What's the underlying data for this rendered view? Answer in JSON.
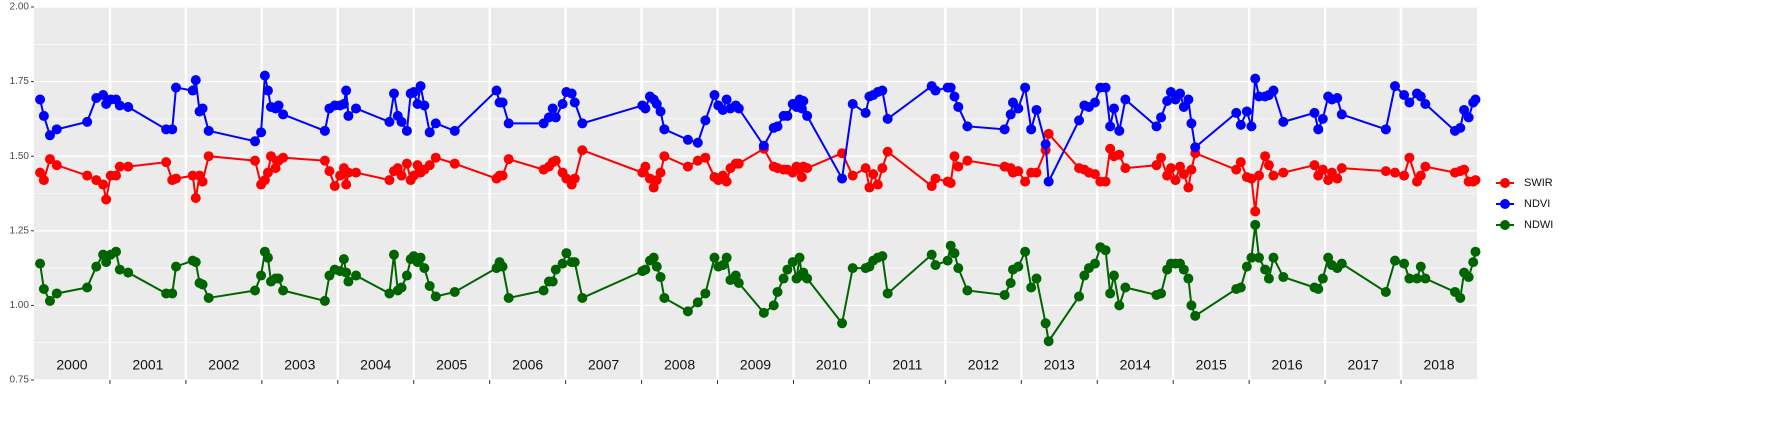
{
  "chart_data": {
    "type": "line",
    "x": [
      2000.08,
      2000.13,
      2000.21,
      2000.3,
      2000.7,
      2000.82,
      2000.91,
      2000.95,
      2001.01,
      2001.08,
      2001.13,
      2001.24,
      2001.74,
      2001.82,
      2001.87,
      2002.09,
      2002.13,
      2002.18,
      2002.22,
      2002.3,
      2002.91,
      2002.99,
      2003.04,
      2003.08,
      2003.12,
      2003.18,
      2003.22,
      2003.28,
      2003.83,
      2003.89,
      2003.96,
      2004.03,
      2004.08,
      2004.11,
      2004.14,
      2004.24,
      2004.68,
      2004.74,
      2004.79,
      2004.84,
      2004.91,
      2004.96,
      2005.0,
      2005.05,
      2005.09,
      2005.14,
      2005.21,
      2005.29,
      2005.54,
      2006.09,
      2006.13,
      2006.17,
      2006.25,
      2006.71,
      2006.78,
      2006.83,
      2006.87,
      2006.96,
      2007.01,
      2007.08,
      2007.12,
      2007.22,
      2008.01,
      2008.05,
      2008.11,
      2008.16,
      2008.2,
      2008.25,
      2008.3,
      2008.61,
      2008.74,
      2008.84,
      2008.96,
      2009.01,
      2009.07,
      2009.12,
      2009.17,
      2009.24,
      2009.28,
      2009.61,
      2009.74,
      2009.79,
      2009.87,
      2009.92,
      2009.99,
      2010.04,
      2010.08,
      2010.11,
      2010.13,
      2010.18,
      2010.64,
      2010.78,
      2010.95,
      2011.0,
      2011.05,
      2011.11,
      2011.17,
      2011.24,
      2011.82,
      2011.87,
      2012.03,
      2012.07,
      2012.12,
      2012.17,
      2012.29,
      2012.78,
      2012.86,
      2012.89,
      2012.96,
      2013.05,
      2013.13,
      2013.2,
      2013.32,
      2013.36,
      2013.76,
      2013.83,
      2013.89,
      2013.97,
      2014.04,
      2014.11,
      2014.17,
      2014.22,
      2014.29,
      2014.37,
      2014.78,
      2014.84,
      2014.92,
      2014.97,
      2015.03,
      2015.09,
      2015.14,
      2015.2,
      2015.24,
      2015.29,
      2015.83,
      2015.89,
      2015.97,
      2016.03,
      2016.08,
      2016.13,
      2016.21,
      2016.26,
      2016.32,
      2016.45,
      2016.86,
      2016.91,
      2016.97,
      2017.04,
      2017.09,
      2017.16,
      2017.22,
      2017.8,
      2017.92,
      2018.04,
      2018.11,
      2018.21,
      2018.26,
      2018.32,
      2018.71,
      2018.78,
      2018.83,
      2018.89,
      2018.95,
      2018.98
    ],
    "series": [
      {
        "name": "SWIR",
        "color": "#ff0000",
        "values": [
          1.445,
          1.42,
          1.49,
          1.47,
          1.435,
          1.42,
          1.405,
          1.355,
          1.435,
          1.435,
          1.465,
          1.465,
          1.48,
          1.42,
          1.425,
          1.435,
          1.36,
          1.435,
          1.415,
          1.5,
          1.485,
          1.405,
          1.42,
          1.445,
          1.5,
          1.46,
          1.485,
          1.495,
          1.485,
          1.45,
          1.4,
          1.435,
          1.46,
          1.405,
          1.445,
          1.445,
          1.42,
          1.45,
          1.46,
          1.435,
          1.475,
          1.42,
          1.435,
          1.47,
          1.445,
          1.455,
          1.47,
          1.495,
          1.475,
          1.425,
          1.435,
          1.435,
          1.49,
          1.455,
          1.465,
          1.48,
          1.485,
          1.445,
          1.425,
          1.405,
          1.425,
          1.52,
          1.445,
          1.465,
          1.425,
          1.395,
          1.42,
          1.445,
          1.5,
          1.465,
          1.485,
          1.495,
          1.43,
          1.42,
          1.435,
          1.415,
          1.46,
          1.475,
          1.475,
          1.525,
          1.465,
          1.46,
          1.455,
          1.455,
          1.445,
          1.465,
          1.455,
          1.43,
          1.465,
          1.46,
          1.51,
          1.435,
          1.46,
          1.395,
          1.44,
          1.405,
          1.46,
          1.515,
          1.4,
          1.425,
          1.415,
          1.41,
          1.5,
          1.465,
          1.485,
          1.465,
          1.46,
          1.445,
          1.45,
          1.415,
          1.445,
          1.445,
          1.52,
          1.575,
          1.46,
          1.455,
          1.445,
          1.44,
          1.415,
          1.415,
          1.525,
          1.5,
          1.505,
          1.46,
          1.47,
          1.495,
          1.435,
          1.46,
          1.42,
          1.465,
          1.44,
          1.395,
          1.455,
          1.51,
          1.455,
          1.48,
          1.43,
          1.425,
          1.315,
          1.435,
          1.5,
          1.47,
          1.435,
          1.445,
          1.47,
          1.435,
          1.455,
          1.42,
          1.445,
          1.425,
          1.46,
          1.45,
          1.445,
          1.435,
          1.495,
          1.415,
          1.435,
          1.465,
          1.445,
          1.45,
          1.455,
          1.415,
          1.415,
          1.42
        ]
      },
      {
        "name": "NDVI",
        "color": "#0000ff",
        "values": [
          1.69,
          1.635,
          1.57,
          1.59,
          1.615,
          1.695,
          1.705,
          1.675,
          1.69,
          1.69,
          1.67,
          1.665,
          1.59,
          1.59,
          1.73,
          1.72,
          1.755,
          1.65,
          1.66,
          1.585,
          1.55,
          1.58,
          1.77,
          1.72,
          1.665,
          1.66,
          1.67,
          1.64,
          1.585,
          1.66,
          1.67,
          1.67,
          1.675,
          1.72,
          1.635,
          1.66,
          1.615,
          1.71,
          1.635,
          1.615,
          1.585,
          1.71,
          1.715,
          1.675,
          1.735,
          1.67,
          1.58,
          1.61,
          1.585,
          1.72,
          1.68,
          1.68,
          1.61,
          1.61,
          1.63,
          1.66,
          1.63,
          1.675,
          1.715,
          1.71,
          1.68,
          1.61,
          1.67,
          1.66,
          1.7,
          1.69,
          1.675,
          1.65,
          1.59,
          1.555,
          1.545,
          1.62,
          1.705,
          1.67,
          1.655,
          1.69,
          1.66,
          1.67,
          1.66,
          1.535,
          1.595,
          1.6,
          1.635,
          1.635,
          1.675,
          1.665,
          1.69,
          1.66,
          1.685,
          1.635,
          1.425,
          1.675,
          1.645,
          1.7,
          1.705,
          1.715,
          1.72,
          1.625,
          1.735,
          1.72,
          1.73,
          1.73,
          1.7,
          1.665,
          1.6,
          1.59,
          1.64,
          1.68,
          1.66,
          1.73,
          1.59,
          1.655,
          1.54,
          1.415,
          1.62,
          1.67,
          1.665,
          1.68,
          1.73,
          1.73,
          1.6,
          1.66,
          1.585,
          1.69,
          1.6,
          1.63,
          1.685,
          1.715,
          1.69,
          1.71,
          1.665,
          1.69,
          1.61,
          1.53,
          1.645,
          1.605,
          1.65,
          1.6,
          1.76,
          1.7,
          1.7,
          1.705,
          1.72,
          1.615,
          1.645,
          1.59,
          1.625,
          1.7,
          1.69,
          1.695,
          1.64,
          1.59,
          1.735,
          1.705,
          1.68,
          1.71,
          1.7,
          1.675,
          1.585,
          1.595,
          1.655,
          1.63,
          1.68,
          1.69
        ]
      },
      {
        "name": "NDWI",
        "color": "#006400",
        "values": [
          1.14,
          1.055,
          1.015,
          1.04,
          1.06,
          1.13,
          1.17,
          1.145,
          1.17,
          1.18,
          1.12,
          1.11,
          1.04,
          1.04,
          1.13,
          1.15,
          1.145,
          1.075,
          1.07,
          1.025,
          1.05,
          1.1,
          1.18,
          1.16,
          1.08,
          1.09,
          1.09,
          1.05,
          1.015,
          1.1,
          1.12,
          1.115,
          1.155,
          1.11,
          1.08,
          1.1,
          1.04,
          1.17,
          1.05,
          1.06,
          1.1,
          1.155,
          1.165,
          1.145,
          1.16,
          1.125,
          1.065,
          1.03,
          1.045,
          1.125,
          1.145,
          1.13,
          1.025,
          1.05,
          1.08,
          1.08,
          1.12,
          1.14,
          1.175,
          1.145,
          1.145,
          1.025,
          1.115,
          1.12,
          1.15,
          1.16,
          1.13,
          1.095,
          1.025,
          0.98,
          1.01,
          1.04,
          1.16,
          1.13,
          1.135,
          1.16,
          1.085,
          1.1,
          1.075,
          0.975,
          1.0,
          1.045,
          1.09,
          1.12,
          1.145,
          1.09,
          1.16,
          1.1,
          1.11,
          1.09,
          0.94,
          1.125,
          1.125,
          1.13,
          1.15,
          1.16,
          1.165,
          1.04,
          1.17,
          1.135,
          1.15,
          1.2,
          1.175,
          1.125,
          1.05,
          1.035,
          1.075,
          1.12,
          1.13,
          1.18,
          1.06,
          1.09,
          0.94,
          0.88,
          1.03,
          1.1,
          1.125,
          1.14,
          1.195,
          1.185,
          1.04,
          1.1,
          1.0,
          1.06,
          1.035,
          1.04,
          1.12,
          1.14,
          1.14,
          1.14,
          1.12,
          1.09,
          1.0,
          0.965,
          1.055,
          1.06,
          1.13,
          1.16,
          1.27,
          1.16,
          1.12,
          1.09,
          1.16,
          1.095,
          1.06,
          1.055,
          1.09,
          1.16,
          1.135,
          1.125,
          1.14,
          1.045,
          1.15,
          1.14,
          1.09,
          1.09,
          1.13,
          1.09,
          1.045,
          1.025,
          1.11,
          1.095,
          1.145,
          1.18
        ]
      }
    ],
    "xlim": [
      2000,
      2019
    ],
    "xticks": [
      {
        "value": 2000.5,
        "label": "2000"
      },
      {
        "value": 2001.5,
        "label": "2001"
      },
      {
        "value": 2002.5,
        "label": "2002"
      },
      {
        "value": 2003.5,
        "label": "2003"
      },
      {
        "value": 2004.5,
        "label": "2004"
      },
      {
        "value": 2005.5,
        "label": "2005"
      },
      {
        "value": 2006.5,
        "label": "2006"
      },
      {
        "value": 2007.5,
        "label": "2007"
      },
      {
        "value": 2008.5,
        "label": "2008"
      },
      {
        "value": 2009.5,
        "label": "2009"
      },
      {
        "value": 2010.5,
        "label": "2010"
      },
      {
        "value": 2011.5,
        "label": "2011"
      },
      {
        "value": 2012.5,
        "label": "2012"
      },
      {
        "value": 2013.5,
        "label": "2013"
      },
      {
        "value": 2014.5,
        "label": "2014"
      },
      {
        "value": 2015.5,
        "label": "2015"
      },
      {
        "value": 2016.5,
        "label": "2016"
      },
      {
        "value": 2017.5,
        "label": "2017"
      },
      {
        "value": 2018.5,
        "label": "2018"
      }
    ],
    "ylim": [
      0.75,
      2.0
    ],
    "yticks": [
      0.75,
      {
        "value": 1.0,
        "label": "1.00"
      },
      1.25,
      {
        "value": 1.5,
        "label": "1.50"
      },
      1.75,
      {
        "value": 2.0,
        "label": "2.00"
      }
    ],
    "grid": true,
    "legend": "right"
  }
}
